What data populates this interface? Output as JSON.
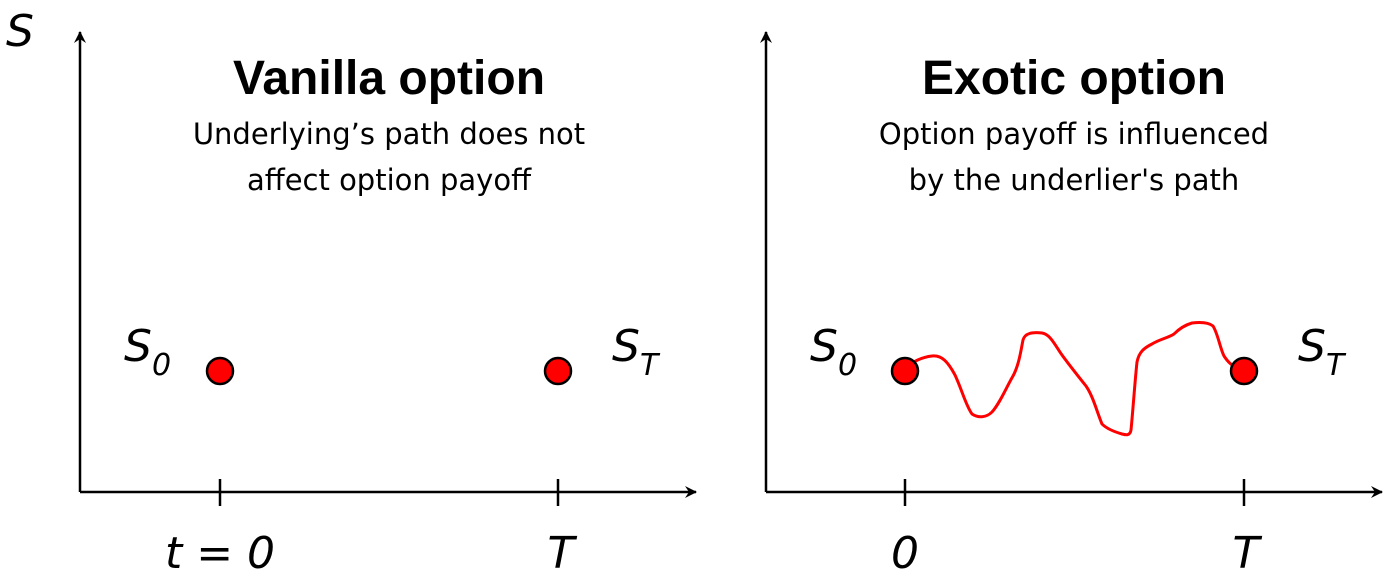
{
  "y_axis_label": "S",
  "left_panel": {
    "title": "Vanilla option",
    "subtitle_line1": "Underlying’s path does not",
    "subtitle_line2": "affect option payoff",
    "start_symbol": "S",
    "start_subscript": "0",
    "end_symbol": "S",
    "end_subscript": "T",
    "x_tick_start": "t = 0",
    "x_tick_end": "T"
  },
  "right_panel": {
    "title": "Exotic option",
    "subtitle_line1": "Option payoff is influenced",
    "subtitle_line2": "by the underlier's path",
    "start_symbol": "S",
    "start_subscript": "0",
    "end_symbol": "S",
    "end_subscript": "T",
    "x_tick_start": "0",
    "x_tick_end": "T"
  },
  "colors": {
    "dot": "#ff0000",
    "path": "#ff0000",
    "axis": "#000000"
  }
}
